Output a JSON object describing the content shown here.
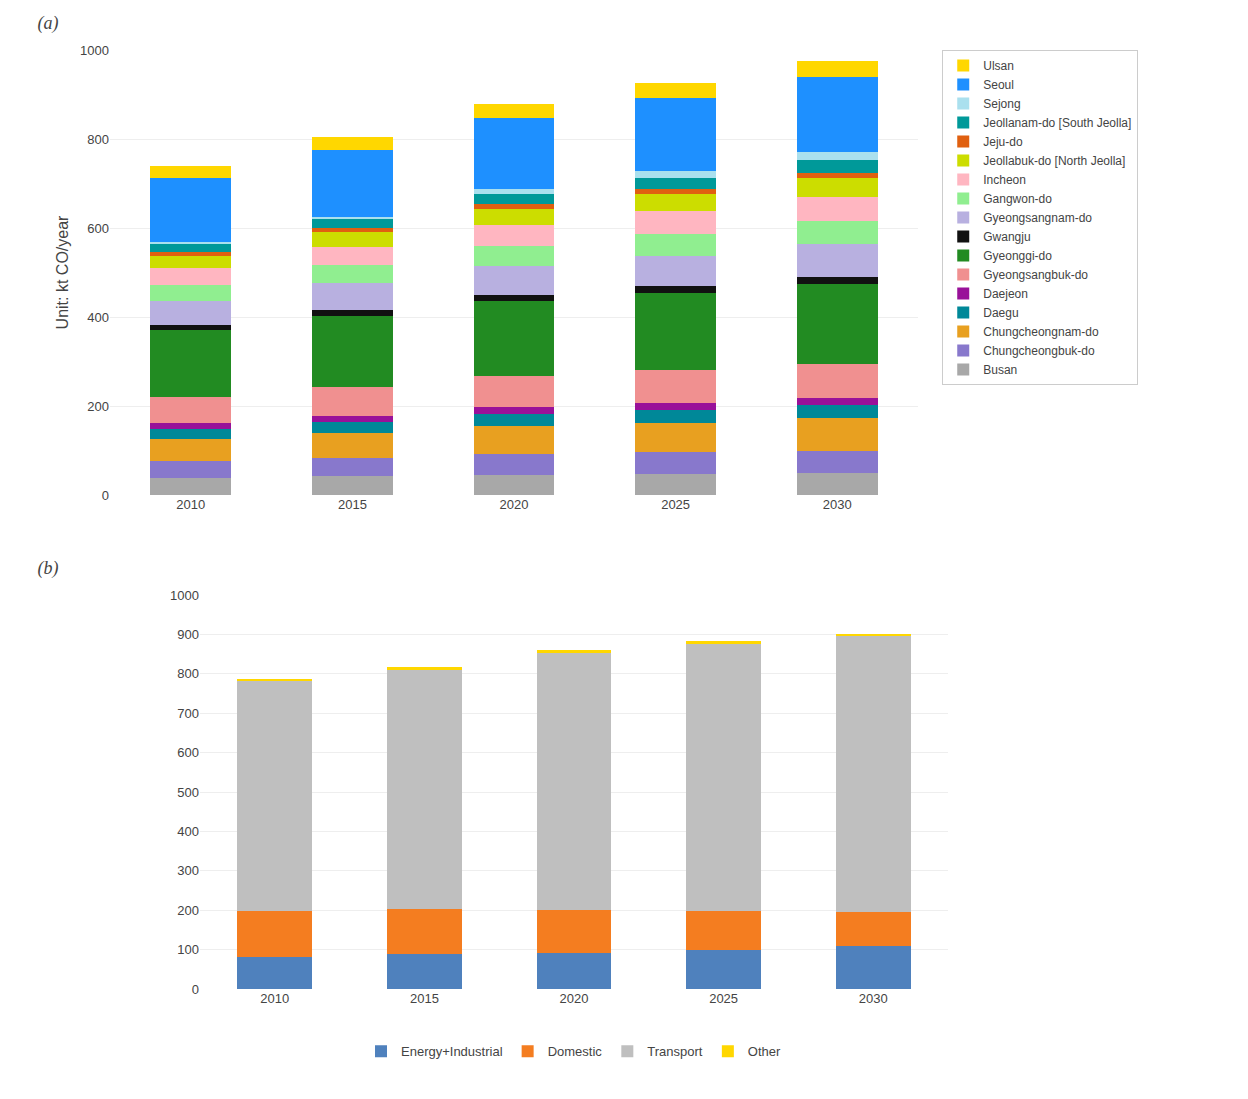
{
  "chart_data": [
    {
      "type": "bar",
      "title": "(a)",
      "stacked": true,
      "grid": true,
      "legend": "right",
      "ylabel": "Unit: kt CO/year",
      "categories": [
        "2010",
        "2015",
        "2020",
        "2025",
        "2030"
      ],
      "series": [
        {
          "name": "Busan",
          "color": "#a8a8a8",
          "values": [
            38,
            42,
            46,
            48,
            50
          ]
        },
        {
          "name": "Chungcheongbuk-do",
          "color": "#8878cc",
          "values": [
            38,
            42,
            46,
            48,
            50
          ]
        },
        {
          "name": "Chungcheongnam-do",
          "color": "#e8a020",
          "values": [
            50,
            55,
            62,
            66,
            72
          ]
        },
        {
          "name": "Daegu",
          "color": "#008898",
          "values": [
            22,
            24,
            27,
            28,
            30
          ]
        },
        {
          "name": "Daejeon",
          "color": "#991199",
          "values": [
            14,
            15,
            16,
            17,
            17
          ]
        },
        {
          "name": "Gyeongsangbuk-do",
          "color": "#f09090",
          "values": [
            58,
            65,
            70,
            73,
            76
          ]
        },
        {
          "name": "Gyeonggi-do",
          "color": "#228b22",
          "values": [
            150,
            160,
            168,
            175,
            180
          ]
        },
        {
          "name": "Gwangju",
          "color": "#111111",
          "values": [
            12,
            13,
            14,
            15,
            16
          ]
        },
        {
          "name": "Gyeongsangnam-do",
          "color": "#b8b0e0",
          "values": [
            55,
            60,
            65,
            68,
            72
          ]
        },
        {
          "name": "Gangwon-do",
          "color": "#90ee90",
          "values": [
            35,
            40,
            45,
            48,
            52
          ]
        },
        {
          "name": "Incheon",
          "color": "#ffb6c1",
          "values": [
            38,
            42,
            48,
            52,
            55
          ]
        },
        {
          "name": "Jeollabuk-do [North Jeolla]",
          "color": "#ccdd00",
          "values": [
            28,
            32,
            36,
            38,
            42
          ]
        },
        {
          "name": "Jeju-do",
          "color": "#e06010",
          "values": [
            8,
            9,
            10,
            11,
            12
          ]
        },
        {
          "name": "Jeollanam-do [South Jeolla]",
          "color": "#009999",
          "values": [
            20,
            22,
            24,
            26,
            28
          ]
        },
        {
          "name": "Sejong",
          "color": "#aae0ee",
          "values": [
            2,
            4,
            10,
            14,
            18
          ]
        },
        {
          "name": "Seoul",
          "color": "#1e90ff",
          "values": [
            145,
            150,
            160,
            165,
            170
          ]
        },
        {
          "name": "Ulsan",
          "color": "#ffd700",
          "values": [
            27,
            29,
            31,
            33,
            35
          ]
        }
      ],
      "ylim": [
        0,
        1000
      ],
      "yticks": [
        0,
        200,
        400,
        600,
        800,
        1000
      ]
    },
    {
      "type": "bar",
      "title": "(b)",
      "stacked": true,
      "grid": true,
      "legend": "bottom",
      "categories": [
        "2010",
        "2015",
        "2020",
        "2025",
        "2030"
      ],
      "series": [
        {
          "name": "Energy+Industrial",
          "color": "#4f81bd",
          "values": [
            80,
            90,
            92,
            100,
            108
          ]
        },
        {
          "name": "Domestic",
          "color": "#f47d20",
          "values": [
            118,
            112,
            108,
            98,
            88
          ]
        },
        {
          "name": "Transport",
          "color": "#bfbfbf",
          "values": [
            585,
            610,
            655,
            680,
            700
          ]
        },
        {
          "name": "Other",
          "color": "#ffd700",
          "values": [
            5,
            5,
            5,
            5,
            5
          ]
        }
      ],
      "ylim": [
        0,
        1000
      ],
      "yticks": [
        0,
        100,
        200,
        300,
        400,
        500,
        600,
        700,
        800,
        900,
        1000
      ]
    }
  ]
}
